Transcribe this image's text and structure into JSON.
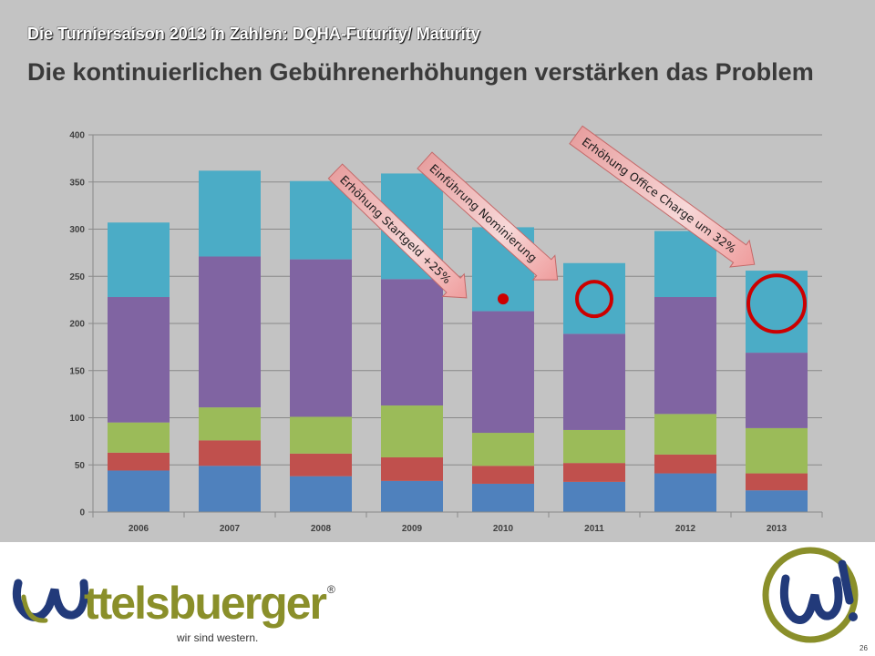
{
  "slide": {
    "kicker": "Die Turniersaison 2013 in Zahlen: DQHA-Futurity/  Maturity",
    "headline": "Die kontinuierlichen Gebührenerhöhungen verstärken das Problem",
    "page_number": "26"
  },
  "footer": {
    "logo_text": "ttelsbuerger",
    "tagline": "wir sind western.",
    "registered_mark": "®"
  },
  "colors": {
    "series": [
      "#4f81bd",
      "#c0504d",
      "#9bbb59",
      "#8064a2",
      "#4bacc6"
    ],
    "marker": "#cc0000",
    "arrow_fill": "#ee9999",
    "logo_green": "#8a8f2a",
    "logo_blue": "#223a7a"
  },
  "chart_data": {
    "type": "bar",
    "stacked": true,
    "categories": [
      "2006",
      "2007",
      "2008",
      "2009",
      "2010",
      "2011",
      "2012",
      "2013"
    ],
    "series": [
      {
        "values": [
          44,
          49,
          38,
          33,
          30,
          32,
          41,
          23
        ]
      },
      {
        "values": [
          19,
          27,
          24,
          25,
          19,
          20,
          20,
          18
        ]
      },
      {
        "values": [
          32,
          35,
          39,
          55,
          35,
          35,
          43,
          48
        ]
      },
      {
        "values": [
          133,
          160,
          167,
          134,
          129,
          102,
          124,
          80
        ]
      },
      {
        "values": [
          79,
          91,
          83,
          112,
          89,
          75,
          70,
          87
        ]
      }
    ],
    "ylim": [
      0,
      400
    ],
    "yticks": [
      "0",
      "50",
      "100",
      "150",
      "200",
      "250",
      "300",
      "350",
      "400"
    ],
    "grid": true,
    "legend": "none",
    "annotations": [
      {
        "text": "Erhöhung Startgeld +25%",
        "year": "2010"
      },
      {
        "text": "Einführung Nominierung",
        "year": "2011"
      },
      {
        "text": "Erhöhung Office Charge um 32%",
        "year": "2013"
      }
    ],
    "markers": [
      {
        "type": "dot",
        "year": "2010",
        "y": 226
      },
      {
        "type": "ring",
        "year": "2011",
        "y": 226
      },
      {
        "type": "ring",
        "year": "2013",
        "y": 221
      }
    ]
  }
}
